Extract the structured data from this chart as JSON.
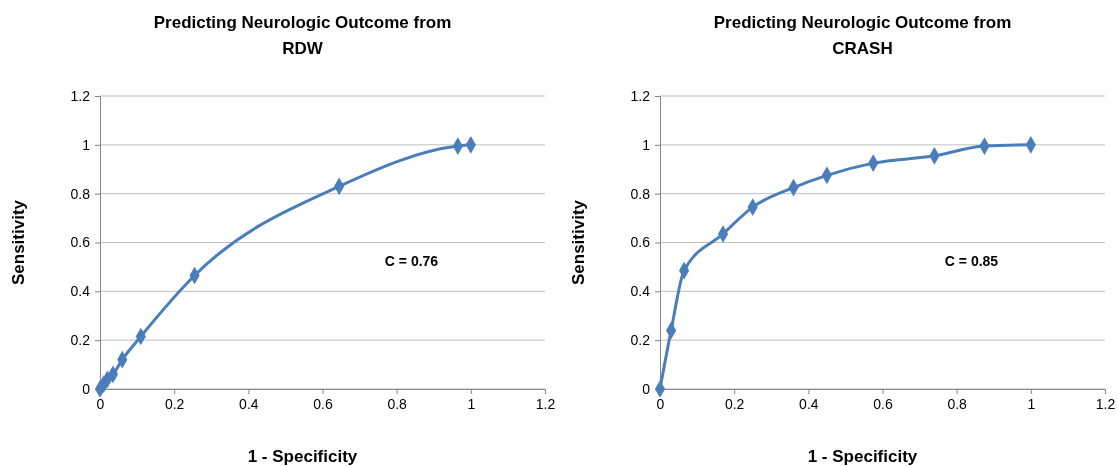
{
  "chart_data": [
    {
      "type": "line",
      "title": "Predicting Neurologic Outcome from RDW",
      "xlabel": "1 - Specificity",
      "ylabel": "Sensitivity",
      "annotations": [
        "C = 0.76"
      ],
      "series": [
        {
          "color": "#4a7ebb",
          "x": [
            0,
            0.01,
            0.02,
            0.035,
            0.06,
            0.11,
            0.255,
            0.645,
            0.965,
            1
          ],
          "values": [
            0,
            0.02,
            0.04,
            0.06,
            0.12,
            0.215,
            0.465,
            0.83,
            0.995,
            1
          ]
        }
      ],
      "xlim": [
        0,
        1.2
      ],
      "xticks": [
        0,
        0.2,
        0.4,
        0.6,
        0.8,
        1,
        1.2
      ],
      "ylim": [
        0,
        1.2
      ],
      "yticks": [
        0,
        0.2,
        0.4,
        0.6,
        0.8,
        1,
        1.2
      ],
      "grid": "y",
      "marker": "diamond",
      "line_style": "solid"
    },
    {
      "type": "line",
      "title": "Predicting Neurologic Outcome from CRASH",
      "xlabel": "1 - Specificity",
      "ylabel": "Sensitivity",
      "annotations": [
        "C = 0.85"
      ],
      "series": [
        {
          "color": "#4a7ebb",
          "x": [
            0,
            0.03,
            0.065,
            0.17,
            0.25,
            0.36,
            0.45,
            0.575,
            0.74,
            0.875,
            1
          ],
          "values": [
            0,
            0.24,
            0.485,
            0.635,
            0.745,
            0.825,
            0.875,
            0.925,
            0.955,
            0.995,
            1
          ]
        }
      ],
      "xlim": [
        0,
        1.2
      ],
      "xticks": [
        0,
        0.2,
        0.4,
        0.6,
        0.8,
        1,
        1.2
      ],
      "ylim": [
        0,
        1.2
      ],
      "yticks": [
        0,
        0.2,
        0.4,
        0.6,
        0.8,
        1,
        1.2
      ],
      "grid": "y",
      "marker": "diamond",
      "line_style": "solid"
    }
  ]
}
